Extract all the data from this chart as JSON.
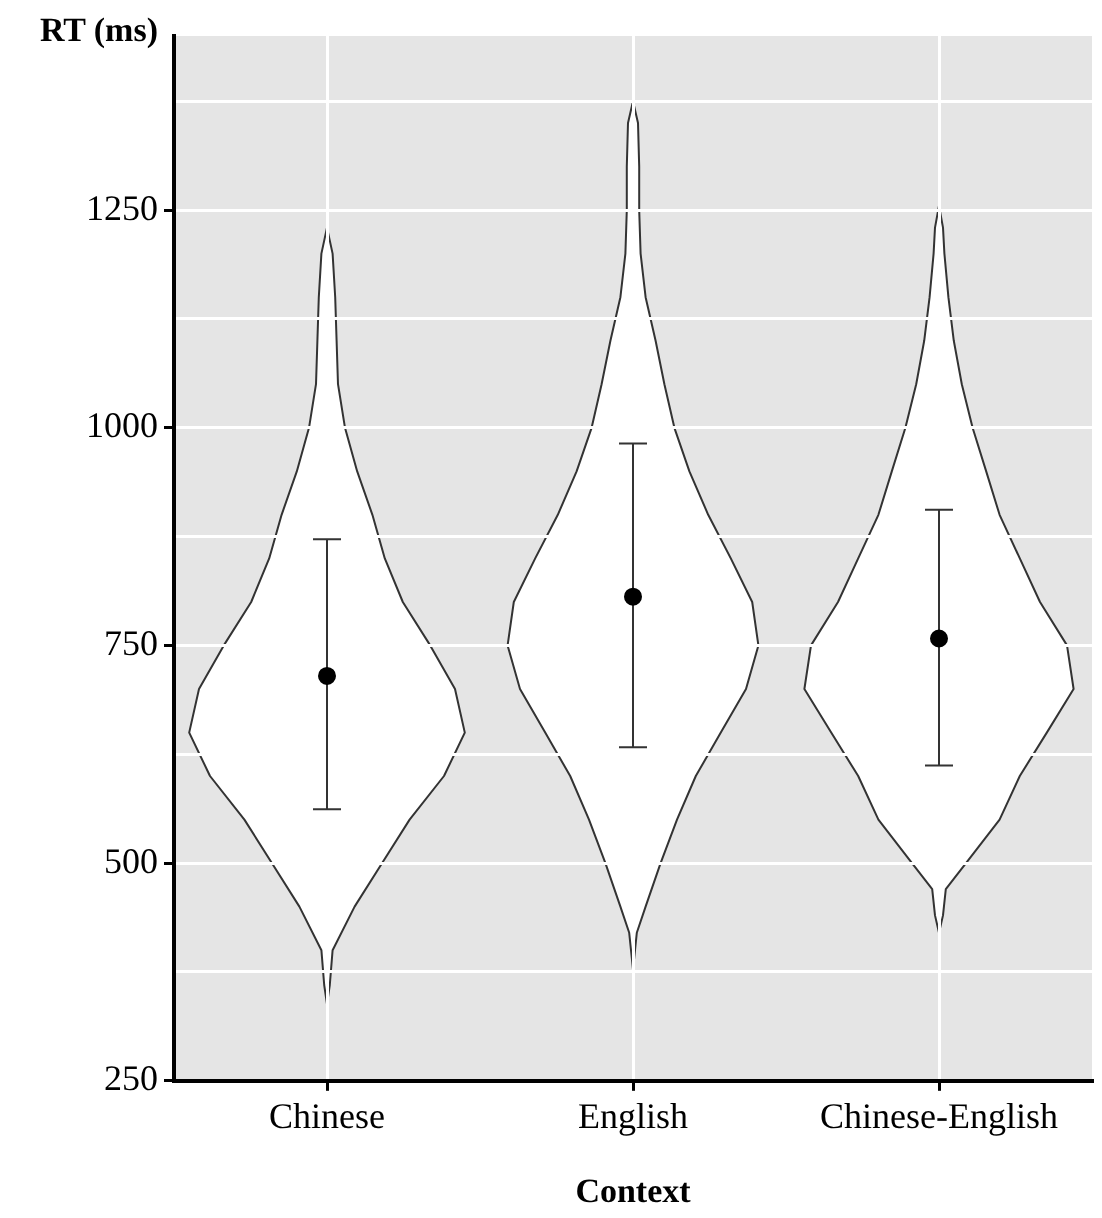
{
  "chart_data": {
    "type": "scatter",
    "xlabel": "Context",
    "ylabel": "RT (ms)",
    "categories": [
      "Chinese",
      "English",
      "Chinese-English"
    ],
    "series": [
      {
        "color": "#000000",
        "values": [
          715,
          806,
          758
        ],
        "errors": [
          [
            562,
            872
          ],
          [
            633,
            982
          ],
          [
            612,
            906
          ]
        ]
      }
    ],
    "ylim": [
      250,
      1450
    ],
    "yticks": [
      250,
      {
        "value": 375,
        "label": null
      },
      500,
      {
        "value": 625,
        "label": null
      },
      750,
      {
        "value": 875,
        "label": null
      },
      1000,
      {
        "value": 1125,
        "label": null
      },
      1250,
      {
        "value": 1375,
        "label": null
      }
    ],
    "grid": true,
    "legend": false,
    "marker": "circle"
  }
}
